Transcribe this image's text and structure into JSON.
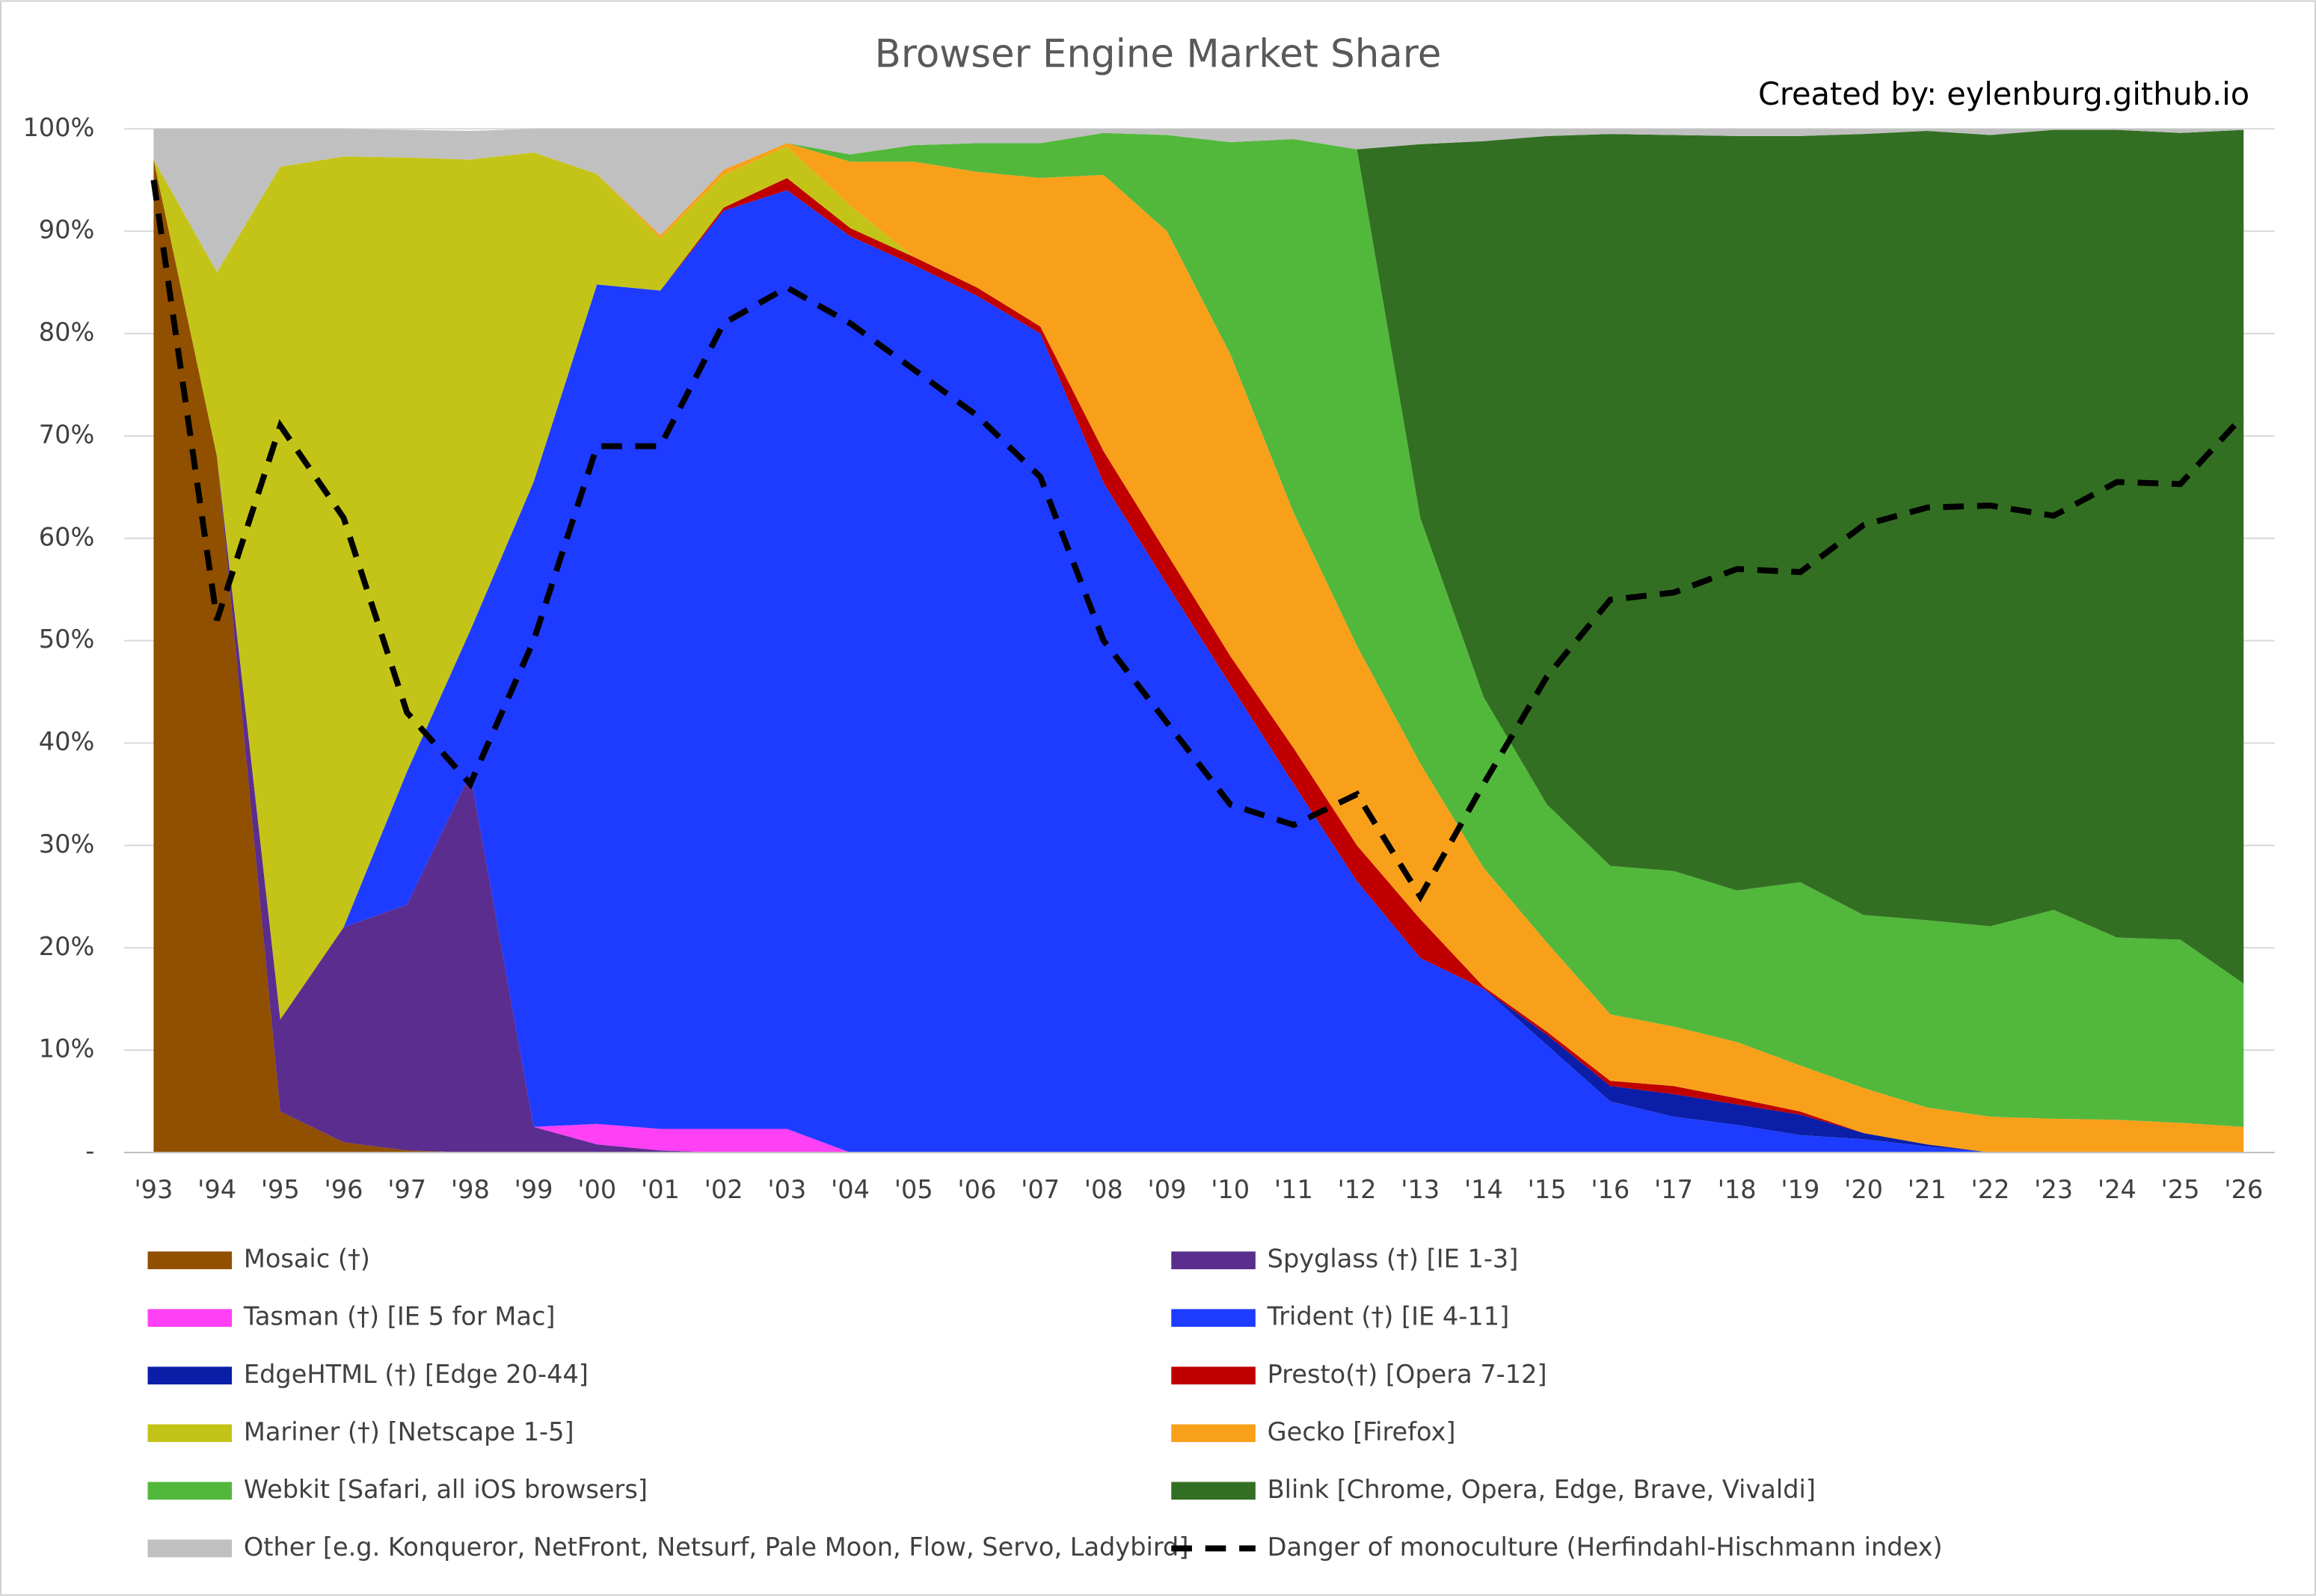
{
  "chart_data": {
    "type": "area",
    "stacked": true,
    "title": "Browser Engine Market Share",
    "annotation": "Created by: eylenburg.github.io",
    "categories": [
      "'93",
      "'94",
      "'95",
      "'96",
      "'97",
      "'98",
      "'99",
      "'00",
      "'01",
      "'02",
      "'03",
      "'04",
      "'05",
      "'06",
      "'07",
      "'08",
      "'09",
      "'10",
      "'11",
      "'12",
      "'13",
      "'14",
      "'15",
      "'16",
      "'17",
      "'18",
      "'19",
      "'20",
      "'21",
      "'22",
      "'23",
      "'24",
      "'25",
      "'26"
    ],
    "ylim": [
      0,
      100
    ],
    "yticks": [
      {
        "value": 0,
        "label": "-"
      },
      {
        "value": 10,
        "label": "10%"
      },
      {
        "value": 20,
        "label": "20%"
      },
      {
        "value": 30,
        "label": "30%"
      },
      {
        "value": 40,
        "label": "40%"
      },
      {
        "value": 50,
        "label": "50%"
      },
      {
        "value": 60,
        "label": "60%"
      },
      {
        "value": 70,
        "label": "70%"
      },
      {
        "value": 80,
        "label": "80%"
      },
      {
        "value": 90,
        "label": "90%"
      },
      {
        "value": 100,
        "label": "100%"
      }
    ],
    "grid": true,
    "legend": "bottom",
    "series": [
      {
        "name": "Mosaic (†)",
        "color": "#914f00",
        "values": [
          97,
          68,
          4,
          1,
          0.2,
          0,
          0,
          0,
          0,
          0,
          0,
          0,
          0,
          0,
          0,
          0,
          0,
          0,
          0,
          0,
          0,
          0,
          0,
          0,
          0,
          0,
          0,
          0,
          0,
          0,
          0,
          0,
          0,
          0
        ]
      },
      {
        "name": "Spyglass (†) [IE 1-3]",
        "color": "#5b2d8e",
        "values": [
          0,
          0,
          9,
          21,
          24,
          37,
          2.5,
          0.8,
          0.2,
          0,
          0,
          0,
          0,
          0,
          0,
          0,
          0,
          0,
          0,
          0,
          0,
          0,
          0,
          0,
          0,
          0,
          0,
          0,
          0,
          0,
          0,
          0,
          0,
          0
        ]
      },
      {
        "name": "Tasman (†) [IE 5 for Mac]",
        "color": "#ff40f5",
        "values": [
          0,
          0,
          0,
          0,
          0,
          0,
          0,
          2,
          2.1,
          2.3,
          2.3,
          0,
          0,
          0,
          0,
          0,
          0,
          0,
          0,
          0,
          0,
          0,
          0,
          0,
          0,
          0,
          0,
          0,
          0,
          0,
          0,
          0,
          0,
          0
        ]
      },
      {
        "name": "Trident (†) [IE 4-11]",
        "color": "#1e3cff",
        "values": [
          0,
          0,
          0,
          0,
          13,
          14,
          63,
          82,
          81.9,
          89.7,
          91.7,
          89.5,
          86.7,
          83.7,
          80,
          65.4,
          55.5,
          45.7,
          36,
          26.5,
          19,
          16,
          10.5,
          5,
          3.5,
          2.7,
          1.7,
          1.3,
          0.6,
          0,
          0,
          0,
          0,
          0
        ]
      },
      {
        "name": "EdgeHTML (†) [Edge 20-44]",
        "color": "#0a1ea8",
        "values": [
          0,
          0,
          0,
          0,
          0,
          0,
          0,
          0,
          0,
          0,
          0,
          0,
          0,
          0,
          0,
          0,
          0,
          0,
          0,
          0,
          0,
          0,
          1,
          1.5,
          2.2,
          2,
          2,
          0.6,
          0.2,
          0,
          0,
          0,
          0,
          0
        ]
      },
      {
        "name": "Presto(†) [Opera 7-12]",
        "color": "#c00000",
        "values": [
          0,
          0,
          0,
          0,
          0,
          0,
          0,
          0,
          0,
          0.3,
          1.2,
          0.8,
          0.8,
          0.8,
          0.7,
          3.1,
          3,
          2.8,
          3.5,
          3.5,
          3.8,
          0.2,
          0.3,
          0.5,
          0.8,
          0.6,
          0.3,
          0,
          0,
          0,
          0,
          0,
          0,
          0
        ]
      },
      {
        "name": "Mariner (†) [Netscape 1-5]",
        "color": "#c4c418",
        "values": [
          0,
          18,
          83.3,
          75.3,
          60,
          46,
          32.2,
          10.8,
          5.1,
          3.2,
          3.1,
          2.2,
          0,
          0,
          0,
          0,
          0,
          0,
          0,
          0,
          0,
          0,
          0,
          0,
          0,
          0,
          0,
          0,
          0,
          0,
          0,
          0,
          0,
          0
        ]
      },
      {
        "name": "Gecko [Firefox]",
        "color": "#f9a01b",
        "values": [
          0,
          0,
          0,
          0,
          0,
          0,
          0,
          0,
          0.3,
          0.5,
          0.3,
          4.3,
          9.3,
          11.3,
          14.5,
          27,
          31.5,
          29.5,
          23,
          19.5,
          15.2,
          11.6,
          8.7,
          6.5,
          5.8,
          5.5,
          4.5,
          4.4,
          3.6,
          3.5,
          3.3,
          3.2,
          2.9,
          2.5
        ]
      },
      {
        "name": "Webkit [Safari, all iOS browsers]",
        "color": "#52b83b",
        "values": [
          0,
          0,
          0,
          0,
          0,
          0,
          0,
          0,
          0,
          0,
          0,
          0.7,
          1.6,
          2.8,
          3.4,
          4.1,
          9.4,
          20.7,
          36.5,
          48.5,
          24,
          16.7,
          13.5,
          14.5,
          15.2,
          14.8,
          17.9,
          16.9,
          18.3,
          18.6,
          20.4,
          17.8,
          17.9,
          14
        ]
      },
      {
        "name": "Blink [Chrome, Opera, Edge, Brave, Vivaldi]",
        "color": "#336f22",
        "values": [
          0,
          0,
          0,
          0,
          0,
          0,
          0,
          0,
          0,
          0,
          0,
          0,
          0,
          0,
          0,
          0,
          0,
          0,
          0,
          0,
          36.5,
          54.3,
          65.3,
          71.5,
          71.9,
          73.7,
          72.9,
          76.3,
          77.1,
          77.3,
          76.2,
          78.9,
          78.8,
          83.4
        ]
      },
      {
        "name": "Other [e.g. Konqueror, NetFront, Netsurf, Pale Moon, Flow, Servo, Ladybird]",
        "color": "#c0c0c0",
        "values": [
          3,
          14,
          3.7,
          2.7,
          2.7,
          2.8,
          2.3,
          4.4,
          10.4,
          4,
          1.4,
          2.5,
          1.6,
          1.4,
          1.4,
          0.4,
          0.6,
          1.3,
          1,
          2,
          1.5,
          1.2,
          0.7,
          0.5,
          0.6,
          0.7,
          0.7,
          0.5,
          0.2,
          0.6,
          0.1,
          0.1,
          0.4,
          0.1
        ]
      },
      {
        "name": "Danger of monoculture (Herfindahl-Hischmann index)",
        "color": "#000000",
        "type": "line",
        "dashed": true,
        "values": [
          95,
          52,
          71,
          62,
          43,
          36,
          50,
          69,
          69,
          81,
          84.5,
          81,
          76.5,
          72,
          66,
          50,
          42,
          34,
          32,
          35,
          25,
          36,
          46.5,
          54,
          54.7,
          57,
          56.7,
          61.3,
          63,
          63.2,
          62.2,
          65.5,
          65.3,
          72
        ]
      }
    ]
  }
}
